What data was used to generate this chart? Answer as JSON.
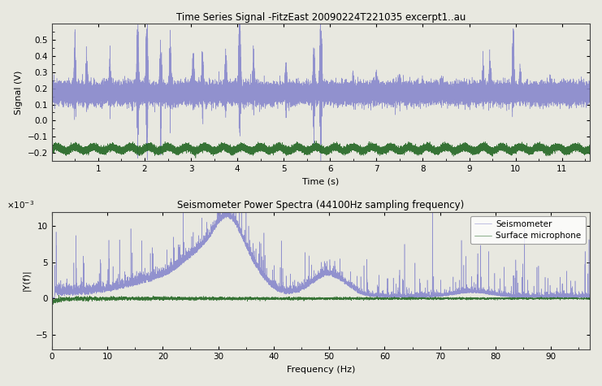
{
  "title_top": "Time Series Signal -FitzEast 20090224T221035 excerpt1..au",
  "title_bottom": "Seismometer Power Spectra (44100Hz sampling frequency)",
  "xlabel_top": "Time (s)",
  "ylabel_top": "Signal (V)",
  "xlabel_bottom": "Frequency (Hz)",
  "ylabel_bottom": "|Y(f)|",
  "time_xlim": [
    0,
    11.6
  ],
  "time_ylim": [
    -0.25,
    0.6
  ],
  "freq_xlim": [
    0,
    97
  ],
  "freq_ylim": [
    -7,
    12
  ],
  "seismo_color": "#8888cc",
  "micro_color": "#226622",
  "legend_entries": [
    "Seismometer",
    "Surface microphone"
  ],
  "background_color": "#e8e8e0",
  "time_yticks": [
    -0.2,
    -0.1,
    0.0,
    0.1,
    0.2,
    0.3,
    0.4,
    0.5
  ],
  "time_xticks": [
    1,
    2,
    3,
    4,
    5,
    6,
    7,
    8,
    9,
    10,
    11
  ],
  "freq_yticks": [
    -5,
    0,
    5,
    10
  ],
  "freq_xticks": [
    0,
    10,
    20,
    30,
    40,
    50,
    60,
    70,
    80,
    90
  ]
}
